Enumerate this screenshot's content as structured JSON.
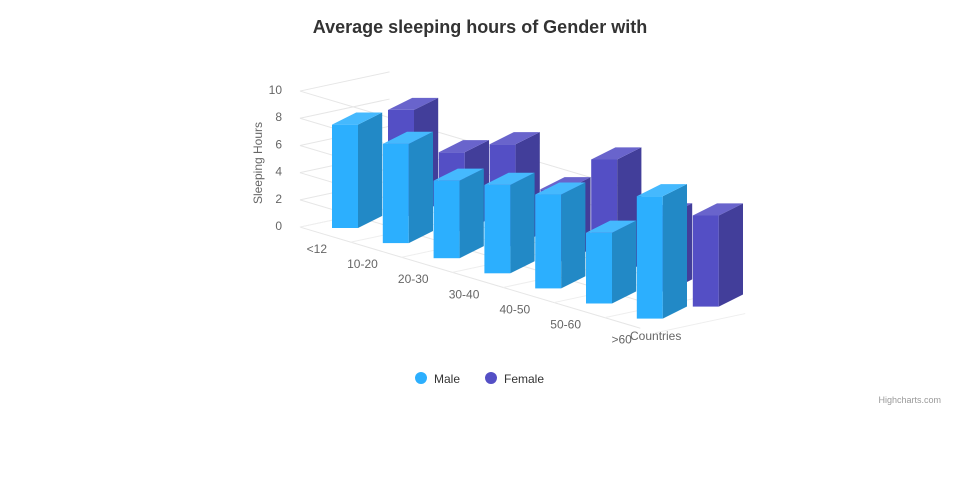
{
  "chart_data": {
    "type": "bar",
    "title": "Average sleeping hours of Gender with",
    "xlabel": "Countries",
    "ylabel": "Sleeping Hours",
    "categories": [
      "<12",
      "10-20",
      "20-30",
      "30-40",
      "40-50",
      "50-60",
      ">60"
    ],
    "series": [
      {
        "name": "Male",
        "values": [
          7.6,
          7.3,
          5.7,
          6.5,
          6.9,
          5.2,
          9.0
        ],
        "color": "#2caffe"
      },
      {
        "name": "Female",
        "values": [
          7.8,
          5.8,
          7.5,
          5.3,
          8.6,
          5.6,
          6.7
        ],
        "color": "#544fc5"
      }
    ],
    "ylim": [
      0,
      10
    ],
    "yticks": [
      0,
      2,
      4,
      6,
      8,
      10
    ],
    "grid": true,
    "legend": "bottom-center",
    "style": "3d-column"
  },
  "credits": "Highcharts.com"
}
